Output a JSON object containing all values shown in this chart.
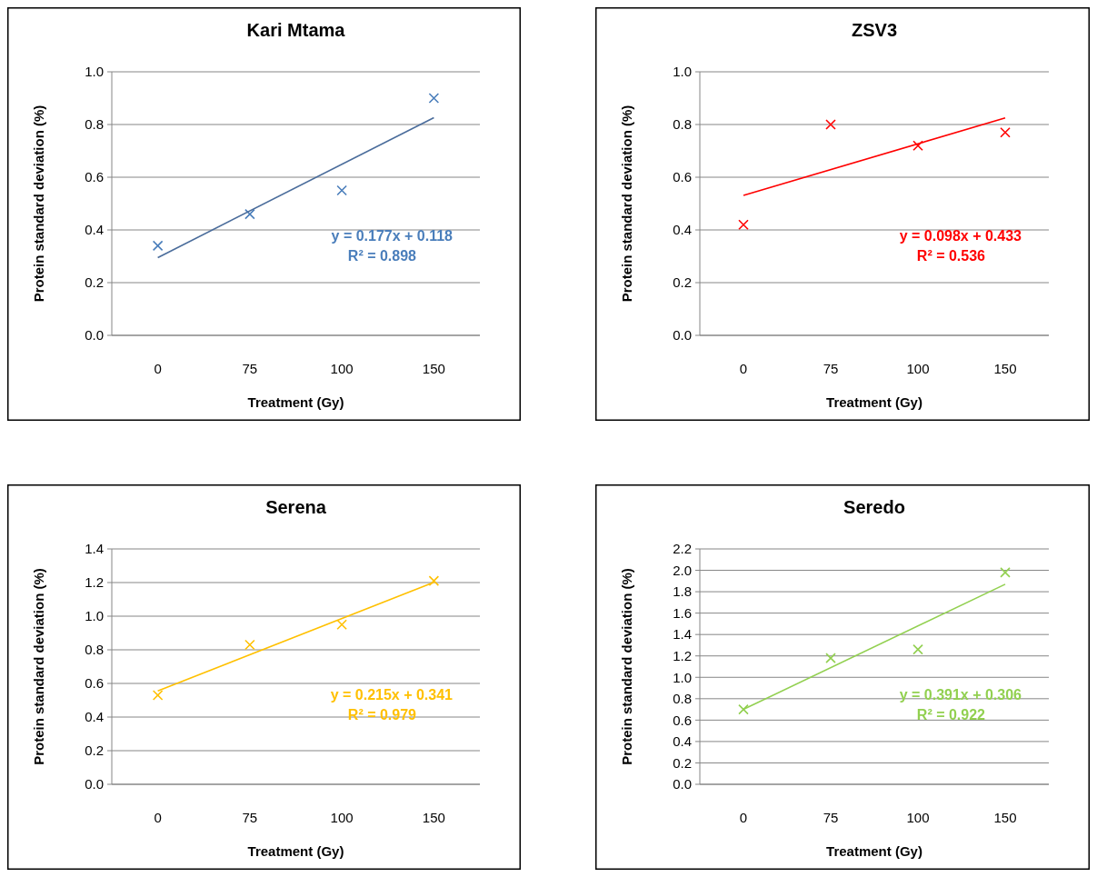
{
  "chart_data": [
    {
      "type": "scatter",
      "title": "Kari Mtama",
      "xlabel": "Treatment (Gy)",
      "ylabel": "Protein standard deviation (%)",
      "categories": [
        "0",
        "75",
        "100",
        "150"
      ],
      "ylim": [
        0,
        1
      ],
      "yticks": [
        {
          "value": 0,
          "label": "0.0"
        },
        {
          "value": 0.2,
          "label": "0.2"
        },
        {
          "value": 0.4,
          "label": "0.4"
        },
        {
          "value": 0.6,
          "label": "0.6"
        },
        {
          "value": 0.8,
          "label": "0.8"
        },
        {
          "value": 1,
          "label": "1.0"
        }
      ],
      "grid": "y",
      "series": [
        {
          "color": "#4a7ebb",
          "marker": "cross",
          "values": [
            0.34,
            0.46,
            0.55,
            0.9
          ]
        },
        {
          "type": "line",
          "color": "#4a6c9b",
          "x": [
            "0",
            "150"
          ],
          "values": [
            0.295,
            0.826
          ]
        }
      ],
      "annotations": [
        "y = 0.177x + 0.118",
        "R² = 0.898"
      ]
    },
    {
      "type": "scatter",
      "title": "ZSV3",
      "xlabel": "Treatment (Gy)",
      "ylabel": "Protein standard deviation (%)",
      "categories": [
        "0",
        "75",
        "100",
        "150"
      ],
      "ylim": [
        0,
        1
      ],
      "yticks": [
        {
          "value": 0,
          "label": "0.0"
        },
        {
          "value": 0.2,
          "label": "0.2"
        },
        {
          "value": 0.4,
          "label": "0.4"
        },
        {
          "value": 0.6,
          "label": "0.6"
        },
        {
          "value": 0.8,
          "label": "0.8"
        },
        {
          "value": 1,
          "label": "1.0"
        }
      ],
      "grid": "y",
      "series": [
        {
          "color": "#ff0000",
          "marker": "cross",
          "values": [
            0.42,
            0.8,
            0.72,
            0.77
          ]
        },
        {
          "type": "line",
          "color": "#ff0000",
          "x": [
            "0",
            "150"
          ],
          "values": [
            0.531,
            0.825
          ]
        }
      ],
      "annotations": [
        "y = 0.098x + 0.433",
        "R² = 0.536"
      ]
    },
    {
      "type": "scatter",
      "title": "Serena",
      "xlabel": "Treatment (Gy)",
      "ylabel": "Protein standard deviation (%)",
      "categories": [
        "0",
        "75",
        "100",
        "150"
      ],
      "ylim": [
        0,
        1.4
      ],
      "yticks": [
        {
          "value": 0,
          "label": "0.0"
        },
        {
          "value": 0.2,
          "label": "0.2"
        },
        {
          "value": 0.4,
          "label": "0.4"
        },
        {
          "value": 0.6,
          "label": "0.6"
        },
        {
          "value": 0.8,
          "label": "0.8"
        },
        {
          "value": 1,
          "label": "1.0"
        },
        {
          "value": 1.2,
          "label": "1.2"
        },
        {
          "value": 1.4,
          "label": "1.4"
        }
      ],
      "grid": "y",
      "series": [
        {
          "color": "#ffc000",
          "marker": "cross",
          "values": [
            0.53,
            0.83,
            0.95,
            1.21
          ]
        },
        {
          "type": "line",
          "color": "#ffc000",
          "x": [
            "0",
            "150"
          ],
          "values": [
            0.556,
            1.201
          ]
        }
      ],
      "annotations": [
        "y = 0.215x + 0.341",
        "R² = 0.979"
      ]
    },
    {
      "type": "scatter",
      "title": "Seredo",
      "xlabel": "Treatment (Gy)",
      "ylabel": "Protein standard deviation (%)",
      "categories": [
        "0",
        "75",
        "100",
        "150"
      ],
      "ylim": [
        0,
        2.2
      ],
      "yticks": [
        {
          "value": 0,
          "label": "0.0"
        },
        {
          "value": 0.2,
          "label": "0.2"
        },
        {
          "value": 0.4,
          "label": "0.4"
        },
        {
          "value": 0.6,
          "label": "0.6"
        },
        {
          "value": 0.8,
          "label": "0.8"
        },
        {
          "value": 1,
          "label": "1.0"
        },
        {
          "value": 1.2,
          "label": "1.2"
        },
        {
          "value": 1.4,
          "label": "1.4"
        },
        {
          "value": 1.6,
          "label": "1.6"
        },
        {
          "value": 1.8,
          "label": "1.8"
        },
        {
          "value": 2,
          "label": "2.0"
        },
        {
          "value": 2.2,
          "label": "2.2"
        }
      ],
      "grid": "y",
      "series": [
        {
          "color": "#92d050",
          "marker": "cross",
          "values": [
            0.7,
            1.18,
            1.26,
            1.98
          ]
        },
        {
          "type": "line",
          "color": "#92d050",
          "x": [
            "0",
            "150"
          ],
          "values": [
            0.7,
            1.87
          ]
        }
      ],
      "annotations": [
        "y = 0.391x + 0.306",
        "R² = 0.922"
      ]
    }
  ]
}
